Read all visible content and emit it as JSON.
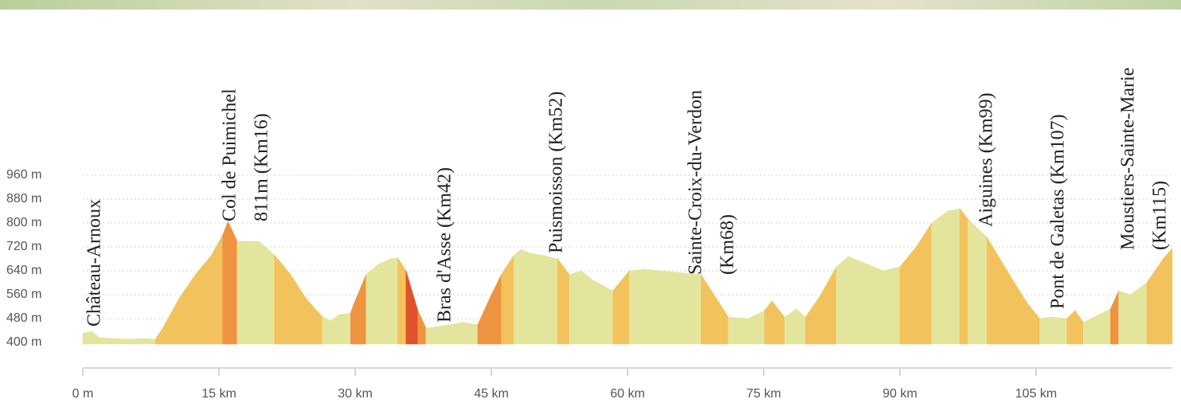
{
  "chart_data": {
    "type": "elevation-area",
    "x": [
      0,
      1,
      1.8,
      4.9,
      6.7,
      8,
      8.9,
      10.6,
      12.4,
      14.2,
      15.4,
      16,
      17,
      18,
      19.4,
      21.1,
      22.9,
      24.6,
      26.4,
      27.3,
      28.2,
      29.5,
      29.9,
      31.2,
      32.5,
      33.9,
      34.7,
      35.6,
      36.9,
      37.8,
      39.1,
      41.8,
      43.5,
      44.8,
      46.1,
      47.5,
      48.3,
      49.2,
      50.5,
      52.3,
      53.6,
      54.9,
      56.2,
      58.4,
      60.2,
      61.9,
      63.7,
      66.3,
      68.1,
      69.8,
      71.1,
      73.3,
      75.1,
      75.9,
      77.3,
      78.6,
      79.6,
      81.2,
      83,
      84.3,
      86,
      88.2,
      90,
      91.8,
      93.5,
      95.3,
      96.6,
      97.5,
      99.6,
      101.8,
      104,
      105.4,
      106.7,
      108.4,
      109.3,
      110.2,
      111.9,
      113.2,
      114.1,
      115.4,
      117.2,
      119,
      120
    ],
    "values": [
      432,
      437,
      416,
      411,
      413,
      411,
      453,
      547,
      627,
      693,
      760,
      805,
      739,
      739,
      739,
      693,
      627,
      547,
      485,
      472,
      493,
      499,
      533,
      627,
      661,
      680,
      683,
      640,
      507,
      448,
      453,
      467,
      459,
      547,
      627,
      693,
      712,
      699,
      693,
      680,
      627,
      640,
      608,
      573,
      640,
      645,
      640,
      632,
      627,
      547,
      485,
      480,
      507,
      539,
      485,
      512,
      485,
      555,
      653,
      688,
      667,
      640,
      653,
      720,
      800,
      840,
      848,
      813,
      752,
      640,
      533,
      480,
      485,
      480,
      507,
      467,
      493,
      512,
      573,
      560,
      600,
      680,
      715
    ],
    "xlim": [
      0,
      120
    ],
    "ylim": [
      400,
      960
    ],
    "xticks": [
      {
        "value": 0,
        "label": "0 m"
      },
      {
        "value": 15,
        "label": "15 km"
      },
      {
        "value": 30,
        "label": "30 km"
      },
      {
        "value": 45,
        "label": "45 km"
      },
      {
        "value": 60,
        "label": "60 km"
      },
      {
        "value": 75,
        "label": "75 km"
      },
      {
        "value": 90,
        "label": "90 km"
      },
      {
        "value": 105,
        "label": "105 km"
      }
    ],
    "yticks": [
      {
        "value": 400,
        "label": "400 m"
      },
      {
        "value": 480,
        "label": "480 m"
      },
      {
        "value": 560,
        "label": "560 m"
      },
      {
        "value": 640,
        "label": "640 m"
      },
      {
        "value": 720,
        "label": "720 m"
      },
      {
        "value": 800,
        "label": "800 m"
      },
      {
        "value": 880,
        "label": "880 m"
      },
      {
        "value": 960,
        "label": "960 m"
      }
    ],
    "grid": true,
    "color": "#e4e59c",
    "annotations": [
      [
        "Château-Arnoux"
      ],
      [
        "Col de  Puimichel",
        "811m (Km16)"
      ],
      [
        "Bras d'Asse (Km42)"
      ],
      [
        "Puismoisson (Km52)"
      ],
      [
        "Sainte-Croix-du-Verdon",
        "(Km68)"
      ],
      [
        "Aiguines (Km99)"
      ],
      [
        "Pont de Galetas (Km107)"
      ],
      [
        "Moustiers-Sainte-Marie",
        "(Km115)"
      ]
    ]
  }
}
